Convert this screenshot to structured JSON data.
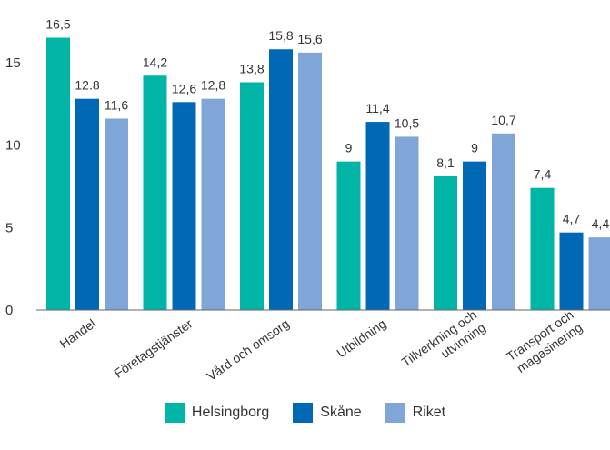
{
  "chart_data": {
    "type": "bar",
    "categories": [
      [
        "Handel"
      ],
      [
        "Företagstjänster"
      ],
      [
        "Vård och omsorg"
      ],
      [
        "Utbildning"
      ],
      [
        "Tillverkning och",
        "utvinning"
      ],
      [
        "Transport och",
        "magasinering"
      ]
    ],
    "series": [
      {
        "name": "Helsingborg",
        "color": "#00b5a5",
        "values": [
          16.5,
          14.2,
          13.8,
          9,
          8.1,
          7.4
        ],
        "labels": [
          "16,5",
          "14,2",
          "13,8",
          "9",
          "8,1",
          "7,4"
        ]
      },
      {
        "name": "Skåne",
        "color": "#0068b4",
        "values": [
          12.8,
          12.6,
          15.8,
          11.4,
          9,
          4.7
        ],
        "labels": [
          "12.8",
          "12,6",
          "15,8",
          "11,4",
          "9",
          "4,7"
        ]
      },
      {
        "name": "Riket",
        "color": "#7fa6d6",
        "values": [
          11.6,
          12.8,
          15.6,
          10.5,
          10.7,
          4.4
        ],
        "labels": [
          "11,6",
          "12,8",
          "15,6",
          "10,5",
          "10,7",
          "4,4"
        ]
      }
    ],
    "yticks": [
      0,
      5,
      10,
      15
    ],
    "ylim": [
      0,
      17
    ],
    "legend_position": "bottom",
    "grid": false
  }
}
